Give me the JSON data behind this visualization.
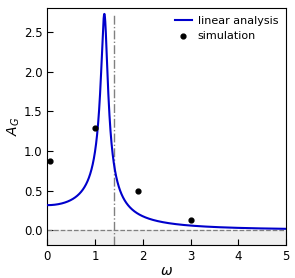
{
  "xlabel": "ω",
  "ylabel": "$A_G$",
  "xlim": [
    0,
    5
  ],
  "ylim": [
    -0.18,
    2.8
  ],
  "line_color": "#0000cc",
  "line_width": 1.5,
  "omega0": 1.2,
  "gamma": 0.14,
  "peak_omega": 1.4,
  "target_peak": 2.73,
  "background_color": "#ffffff",
  "simulation_points_x": [
    0.05,
    1.0,
    1.9,
    3.0
  ],
  "simulation_points_y": [
    0.87,
    1.29,
    0.5,
    0.13
  ],
  "dashed_vline_x": 1.4,
  "dashed_hline_y": 0.0,
  "legend_labels": [
    "linear analysis",
    "simulation"
  ],
  "yticks": [
    0.0,
    0.5,
    1.0,
    1.5,
    2.0,
    2.5
  ],
  "xticks": [
    0,
    1,
    2,
    3,
    4,
    5
  ],
  "tick_labelsize": 8.5,
  "legend_fontsize": 8,
  "label_fontsize": 10
}
